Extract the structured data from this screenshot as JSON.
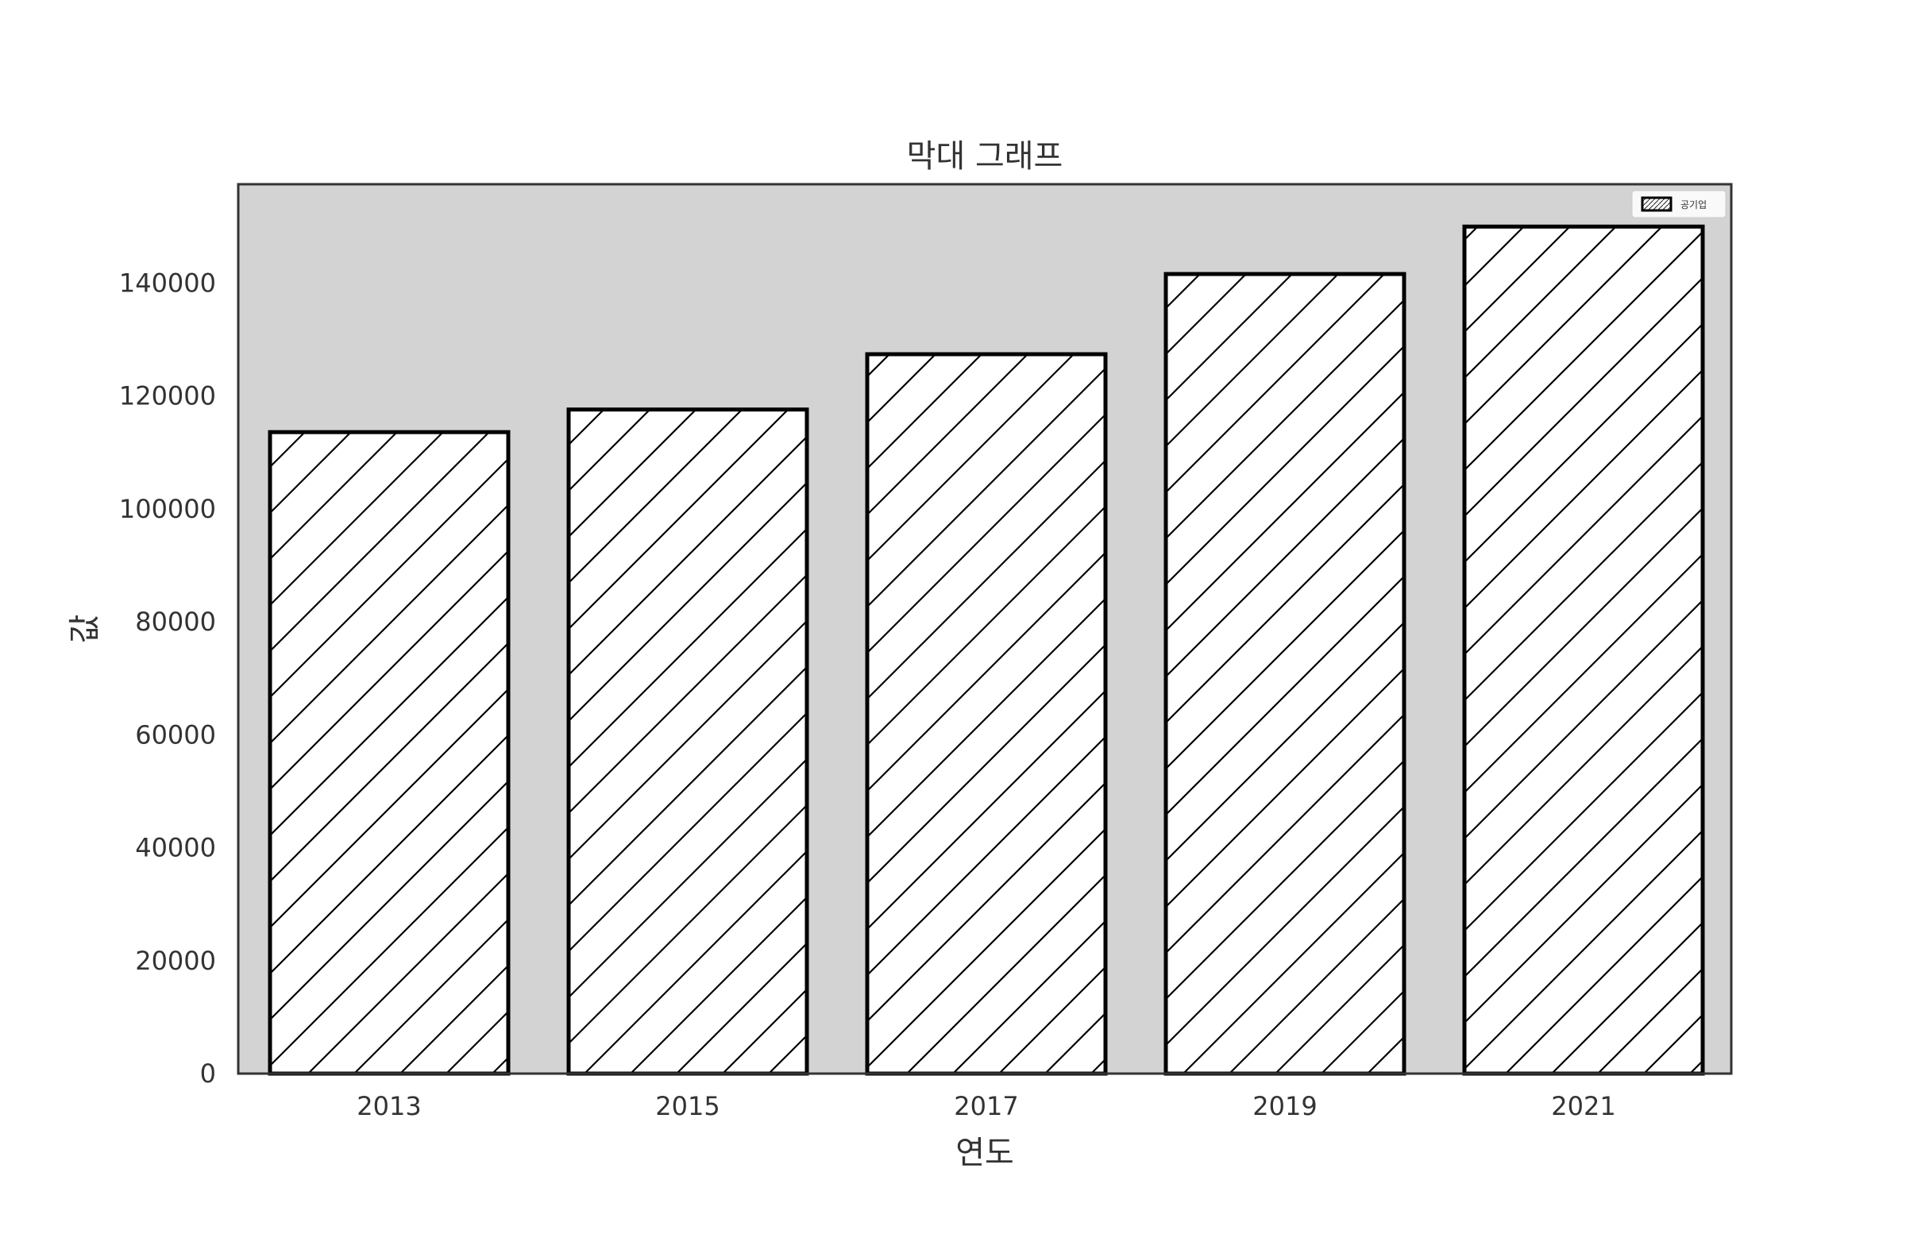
{
  "chart_data": {
    "type": "bar",
    "title": "막대 그래프",
    "xlabel": "연도",
    "ylabel": "값",
    "categories": [
      "2013",
      "2015",
      "2017",
      "2019",
      "2021"
    ],
    "series": [
      {
        "name": "공기업",
        "values": [
          113600,
          117600,
          127400,
          141600,
          150000
        ]
      }
    ],
    "ylim": [
      0,
      157500
    ],
    "yticks": [
      0,
      20000,
      40000,
      60000,
      80000,
      100000,
      120000,
      140000
    ],
    "ytick_labels": [
      "0",
      "20000",
      "40000",
      "60000",
      "80000",
      "100000",
      "120000",
      "140000"
    ],
    "grid": false,
    "legend_position": "top-right",
    "bar_fill": "#ffffff",
    "bar_edge": "#000000",
    "bar_hatch": "forward-diagonal",
    "plot_background": "#d3d3d3"
  }
}
